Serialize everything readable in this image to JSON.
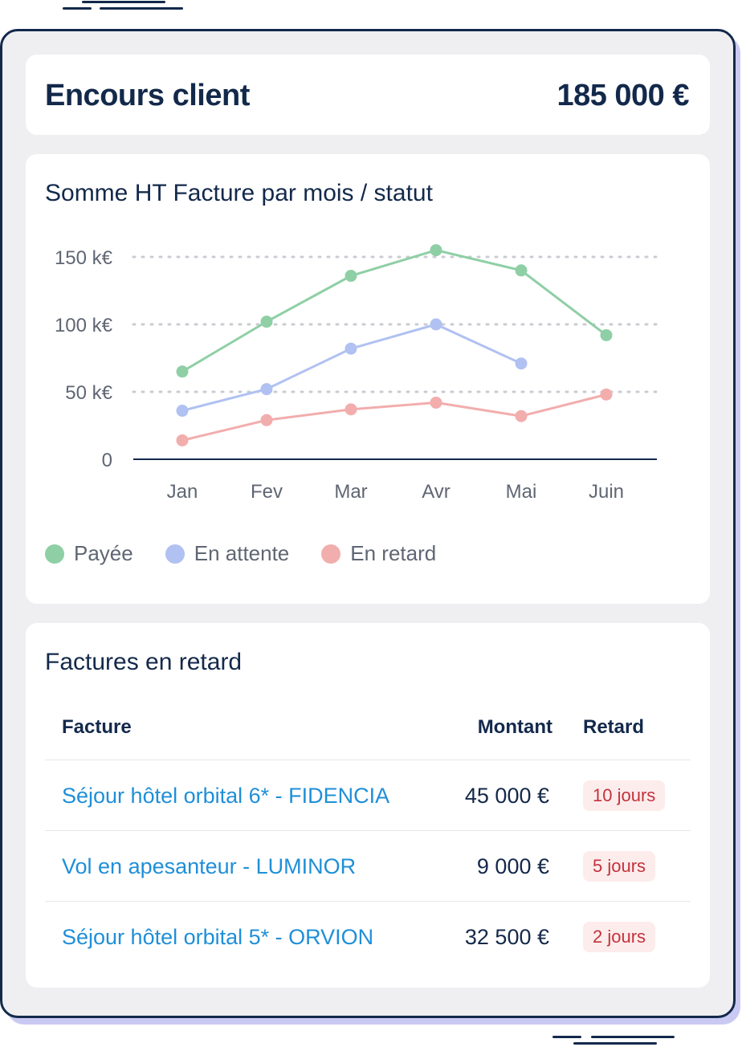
{
  "summary": {
    "label": "Encours client",
    "value": "185 000 €"
  },
  "chart_card": {
    "title": "Somme HT Facture par mois / statut"
  },
  "chart_data": {
    "type": "line",
    "title": "Somme HT Facture par mois / statut",
    "categories": [
      "Jan",
      "Fev",
      "Mar",
      "Avr",
      "Mai",
      "Juin"
    ],
    "y_ticks": [
      "0",
      "50 k€",
      "100 k€",
      "150 k€"
    ],
    "ylim": [
      0,
      150
    ],
    "grid": "dotted horizontal",
    "legend_position": "bottom-left",
    "series": [
      {
        "name": "Payée",
        "color": "#8fcfa5",
        "values": [
          65,
          102,
          136,
          155,
          140,
          92
        ]
      },
      {
        "name": "En attente",
        "color": "#b0c1f2",
        "values": [
          36,
          52,
          82,
          100,
          71,
          null
        ]
      },
      {
        "name": "En retard",
        "color": "#f2adad",
        "values": [
          14,
          29,
          37,
          42,
          32,
          48
        ]
      }
    ]
  },
  "table": {
    "title": "Factures en retard",
    "headers": {
      "invoice": "Facture",
      "amount": "Montant",
      "delay": "Retard"
    },
    "rows": [
      {
        "invoice": "Séjour hôtel orbital 6* - FIDENCIA",
        "amount": "45 000 €",
        "delay": "10 jours"
      },
      {
        "invoice": "Vol en apesanteur - LUMINOR",
        "amount": "9 000 €",
        "delay": "5 jours"
      },
      {
        "invoice": "Séjour hôtel orbital 5* - ORVION",
        "amount": "32 500 €",
        "delay": "2 jours"
      }
    ]
  },
  "colors": {
    "navy": "#13294b",
    "link": "#1f8fd8",
    "badge_bg": "#fdecec",
    "badge_text": "#c3323c",
    "frame_bg": "#efeff1"
  }
}
